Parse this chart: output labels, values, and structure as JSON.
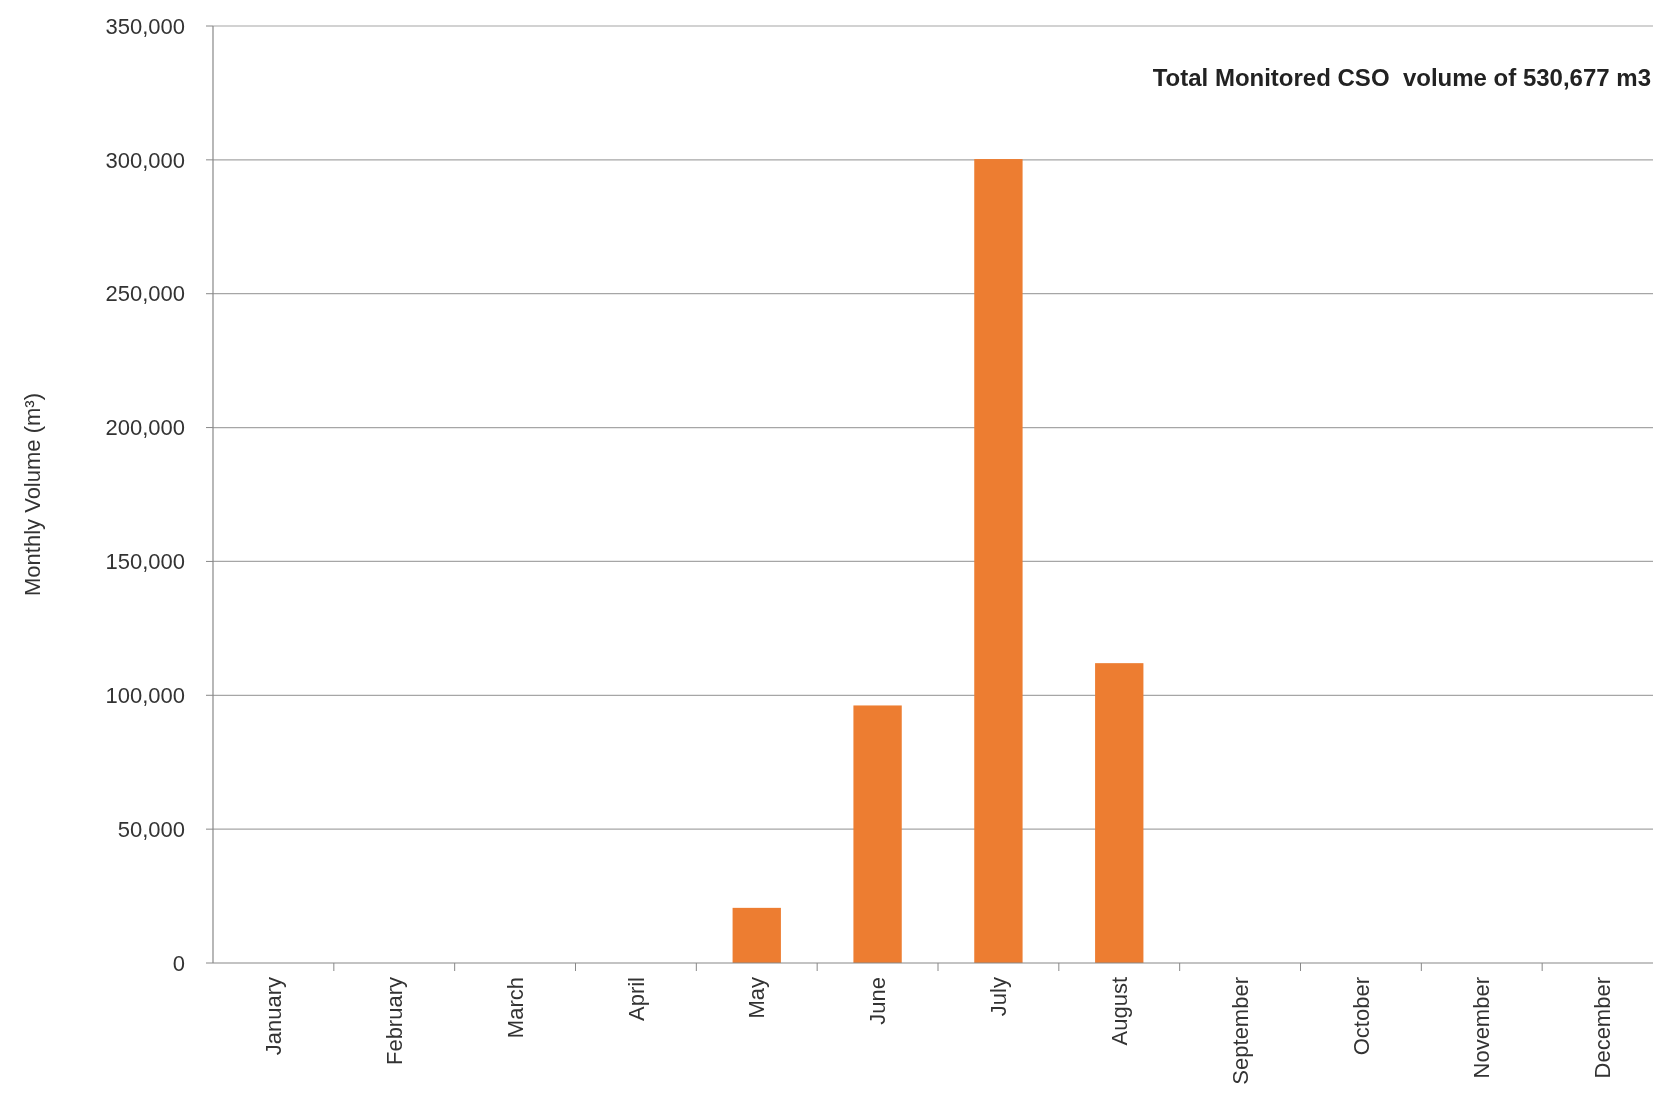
{
  "chart_data": {
    "type": "bar",
    "ylabel": "Monthly Volume (m³)",
    "categories": [
      "January",
      "February",
      "March",
      "April",
      "May",
      "June",
      "July",
      "August",
      "September",
      "October",
      "November",
      "December"
    ],
    "values": [
      0,
      0,
      0,
      0,
      20600,
      96200,
      300300,
      112000,
      0,
      0,
      0,
      0
    ],
    "color": "#ed7d31",
    "ylim": [
      0,
      350000
    ],
    "yticks": [
      {
        "value": 0,
        "label": "0"
      },
      {
        "value": 50000,
        "label": "50,000"
      },
      {
        "value": 100000,
        "label": "100,000"
      },
      {
        "value": 150000,
        "label": "150,000"
      },
      {
        "value": 200000,
        "label": "200,000"
      },
      {
        "value": 250000,
        "label": "250,000"
      },
      {
        "value": 300000,
        "label": "300,000"
      },
      {
        "value": 350000,
        "label": "350,000"
      }
    ],
    "grid": "y",
    "annotations": [
      "Total Monitored CSO  volume of 530,677 m3"
    ]
  }
}
